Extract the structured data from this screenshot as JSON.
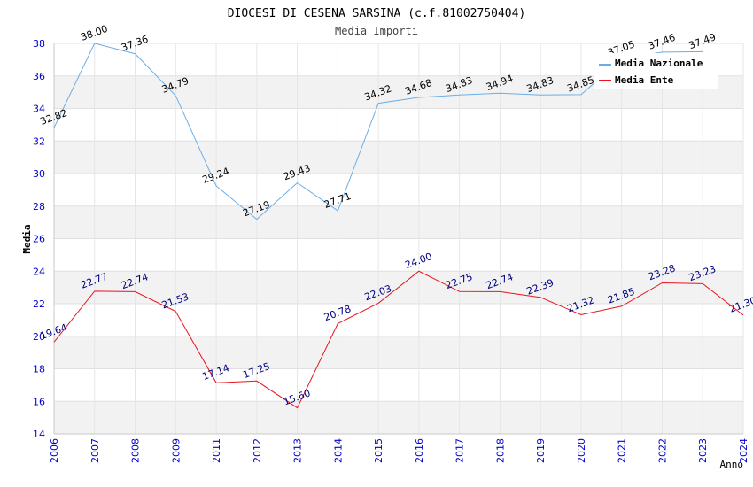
{
  "chart_data": {
    "type": "line",
    "title": "DIOCESI DI CESENA SARSINA (c.f.81002750404)",
    "subtitle": "Media Importi",
    "xlabel": "Anno",
    "ylabel": "Media",
    "ylim": [
      14,
      38
    ],
    "yticks": [
      "14",
      "16",
      "18",
      "20",
      "22",
      "24",
      "26",
      "28",
      "30",
      "32",
      "34",
      "36",
      "38"
    ],
    "x": [
      "2006",
      "2007",
      "2008",
      "2009",
      "2011",
      "2012",
      "2013",
      "2014",
      "2015",
      "2016",
      "2017",
      "2018",
      "2019",
      "2020",
      "2021",
      "2022",
      "2023",
      "2024"
    ],
    "legend_position": "top-right",
    "grid": true,
    "series": [
      {
        "name": "Media Nazionale",
        "color": "#6aaee8",
        "values": [
          32.82,
          38.0,
          37.36,
          34.79,
          29.24,
          27.19,
          29.43,
          27.71,
          34.32,
          34.68,
          34.83,
          34.94,
          34.83,
          34.85,
          37.05,
          37.46,
          37.49,
          null
        ],
        "labels": [
          "32.82",
          "38.00",
          "37.36",
          "34.79",
          "29.24",
          "27.19",
          "29.43",
          "27.71",
          "34.32",
          "34.68",
          "34.83",
          "34.94",
          "34.83",
          "34.85",
          "37.05",
          "37.46",
          "37.49",
          ""
        ]
      },
      {
        "name": "Media Ente",
        "color": "#e8141e",
        "values": [
          19.64,
          22.77,
          22.74,
          21.53,
          17.14,
          17.25,
          15.6,
          20.78,
          22.03,
          24.0,
          22.75,
          22.74,
          22.39,
          21.32,
          21.85,
          23.28,
          23.23,
          21.3
        ],
        "labels": [
          "19.64",
          "22.77",
          "22.74",
          "21.53",
          "17.14",
          "17.25",
          "15.60",
          "20.78",
          "22.03",
          "24.00",
          "22.75",
          "22.74",
          "22.39",
          "21.32",
          "21.85",
          "23.28",
          "23.23",
          "21.30"
        ]
      }
    ]
  },
  "colors": {
    "band": "#f2f2f2",
    "axis_tick_text": "#0000cc",
    "title_text": "#000000",
    "subtitle_text": "#444444",
    "ente_label_text": "#000080",
    "nazionale_label_text": "#000000"
  }
}
